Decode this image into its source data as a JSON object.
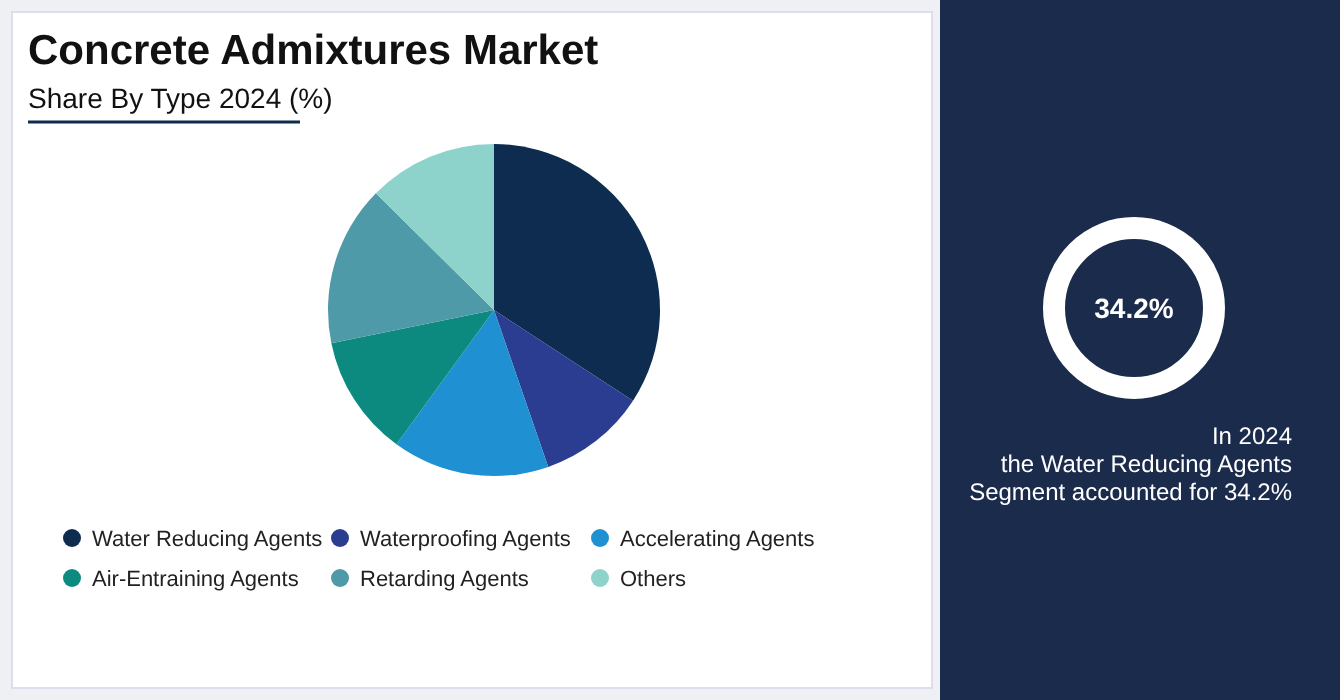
{
  "chart_data": [
    {
      "type": "pie",
      "title": "Concrete Admixtures Market",
      "subtitle": "Share By Type 2024 (%)",
      "categories": [
        "Water Reducing Agents",
        "Waterproofing Agents",
        "Accelerating Agents",
        "Air-Entraining Agents",
        "Retarding Agents",
        "Others"
      ],
      "values": [
        34.2,
        10.5,
        15.3,
        11.8,
        15.6,
        12.6
      ],
      "colors": [
        "#0d2c4f",
        "#2b3d91",
        "#1f90d2",
        "#0c8a80",
        "#4f9aa8",
        "#8dd3cc"
      ],
      "legend": "bottom"
    },
    {
      "type": "other",
      "annotations": [
        "34.2%",
        "In 2024",
        "the Water Reducing Agents",
        "Segment accounted for 34.2%"
      ]
    }
  ]
}
